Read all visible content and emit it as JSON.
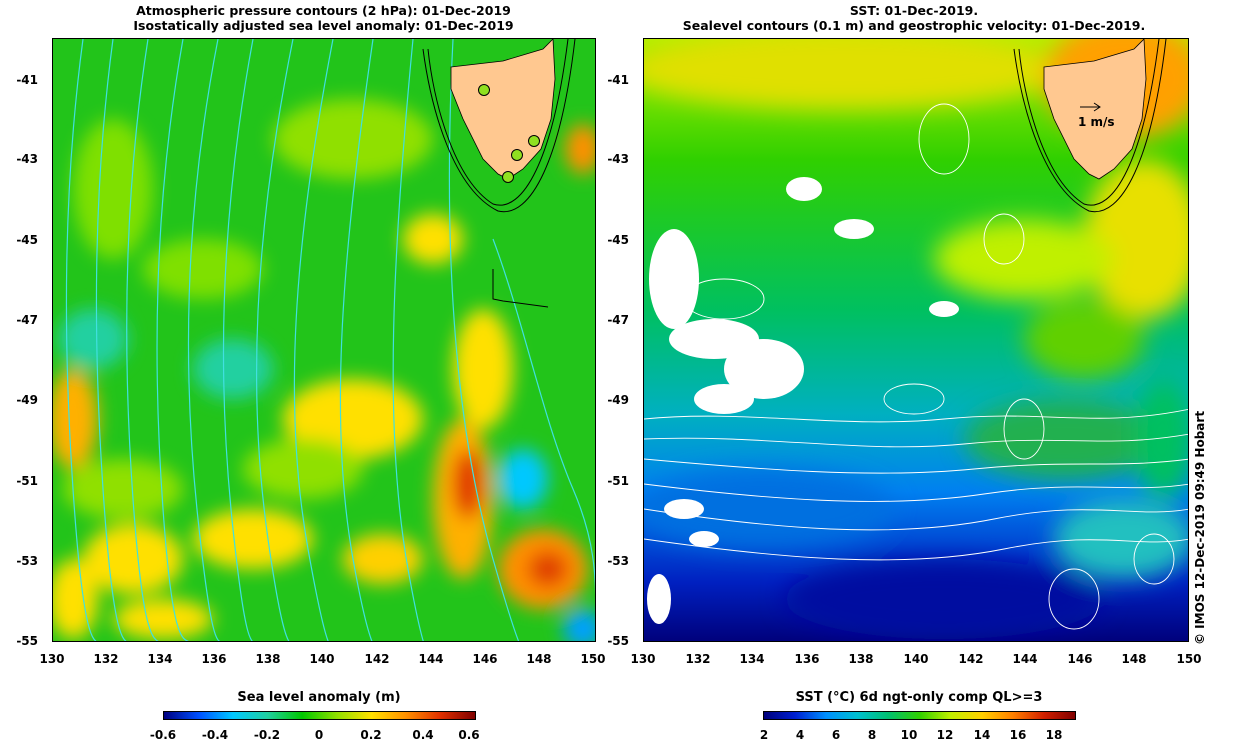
{
  "left_panel": {
    "title_line1": "Atmospheric pressure contours (2 hPa): 01-Dec-2019",
    "title_line2": "Isostatically adjusted sea level anomaly: 01-Dec-2019",
    "colorbar_title": "Sea level anomaly (m)",
    "colorbar_ticks": [
      "-0.6",
      "-0.4",
      "-0.2",
      "0",
      "0.2",
      "0.4",
      "0.6"
    ]
  },
  "right_panel": {
    "title_line1": "SST: 01-Dec-2019.",
    "title_line2": "Sealevel contours (0.1 m) and geostrophic velocity: 01-Dec-2019.",
    "scale_arrow_label": "1 m/s",
    "colorbar_title": "SST (°C) 6d ngt-only comp QL>=3",
    "colorbar_ticks": [
      "2",
      "4",
      "6",
      "8",
      "10",
      "12",
      "14",
      "16",
      "18"
    ]
  },
  "axes": {
    "x_ticks": [
      "130",
      "132",
      "134",
      "136",
      "138",
      "140",
      "142",
      "144",
      "146",
      "148",
      "150"
    ],
    "y_ticks": [
      "-41",
      "-43",
      "-45",
      "-47",
      "-49",
      "-51",
      "-53",
      "-55"
    ]
  },
  "credit": "© IMOS 12-Dec-2019 09:49 Hobart",
  "colors": {
    "sla_colormap": [
      "#000080",
      "#0050ff",
      "#00c8ff",
      "#20d0a0",
      "#00c800",
      "#90e000",
      "#ffe000",
      "#ff9000",
      "#e03000",
      "#800000"
    ],
    "sst_colormap": [
      "#00007a",
      "#0020d0",
      "#0090ff",
      "#00c0d0",
      "#00c070",
      "#30d000",
      "#c0f000",
      "#ffd000",
      "#ff8000",
      "#d02000",
      "#800000"
    ],
    "land": "#ffc890",
    "pressure_contour": "#40e0e0",
    "sealevel_contour": "#ffffff"
  }
}
